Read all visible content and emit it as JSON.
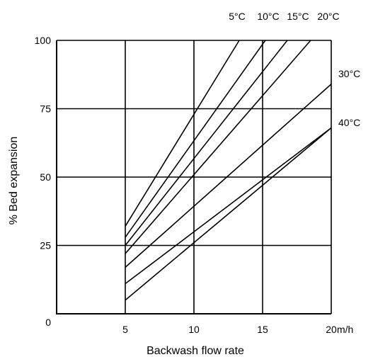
{
  "chart_data": {
    "type": "line",
    "xlabel": "Backwash flow rate",
    "ylabel": "% Bed expansion",
    "x_unit": "m/h",
    "xlim": [
      0,
      20
    ],
    "ylim": [
      0,
      100
    ],
    "x_ticks": [
      0,
      5,
      10,
      15,
      20
    ],
    "y_ticks": [
      0,
      25,
      50,
      75,
      100
    ],
    "grid": true,
    "series": [
      {
        "name": "5°C",
        "x": [
          5,
          13.3
        ],
        "y": [
          32,
          100
        ]
      },
      {
        "name": "10°C",
        "x": [
          5,
          15.2
        ],
        "y": [
          28,
          100
        ]
      },
      {
        "name": "15°C",
        "x": [
          5,
          16.8
        ],
        "y": [
          25,
          100
        ]
      },
      {
        "name": "20°C",
        "x": [
          5,
          18.5
        ],
        "y": [
          22,
          100
        ]
      },
      {
        "name": "30°C",
        "x": [
          5,
          20
        ],
        "y": [
          17,
          84
        ]
      },
      {
        "name": "40°C",
        "x": [
          5,
          20
        ],
        "y": [
          11,
          68
        ]
      },
      {
        "name": "",
        "x": [
          5,
          20
        ],
        "y": [
          5,
          68
        ]
      }
    ]
  }
}
